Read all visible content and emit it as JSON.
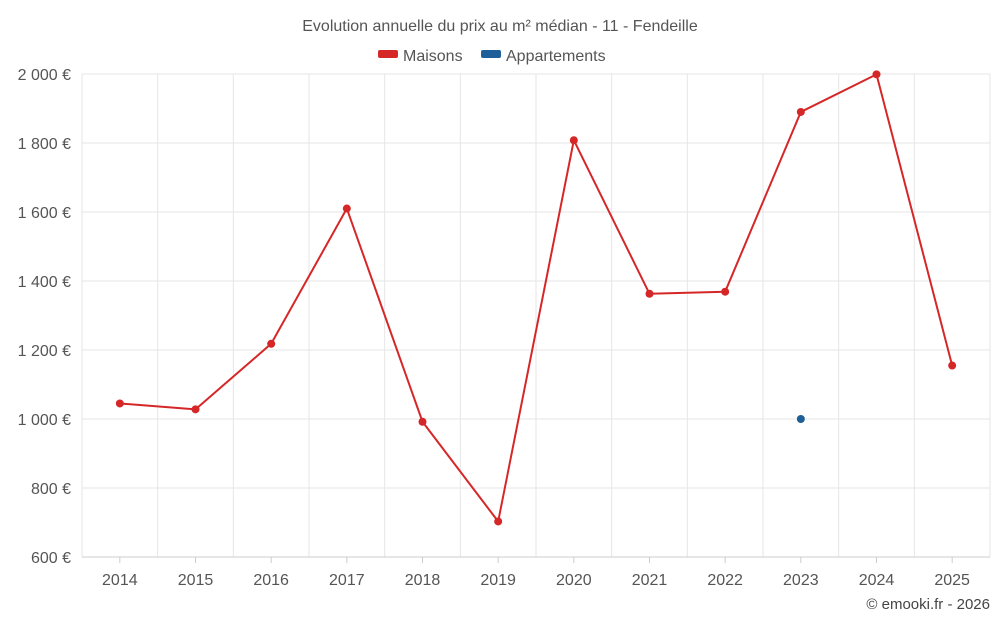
{
  "chart_data": {
    "type": "line",
    "title": "Evolution annuelle du prix au m² médian - 11 - Fendeille",
    "xlabel": "",
    "ylabel": "",
    "categories": [
      "2014",
      "2015",
      "2016",
      "2017",
      "2018",
      "2019",
      "2020",
      "2021",
      "2022",
      "2023",
      "2024",
      "2025"
    ],
    "ylim": [
      600,
      2000
    ],
    "y_ticks": [
      600,
      800,
      1000,
      1200,
      1400,
      1600,
      1800,
      2000
    ],
    "y_tick_labels": [
      "600 €",
      "800 €",
      "1 000 €",
      "1 200 €",
      "1 400 €",
      "1 600 €",
      "1 800 €",
      "2 000 €"
    ],
    "grid": true,
    "legend_position": "top-center",
    "series": [
      {
        "name": "Maisons",
        "color": "#d62728",
        "values": [
          1045,
          1028,
          1218,
          1610,
          992,
          703,
          1808,
          1363,
          1369,
          1890,
          1999,
          1155
        ]
      },
      {
        "name": "Appartements",
        "color": "#1f5f99",
        "values": [
          null,
          null,
          null,
          null,
          null,
          null,
          null,
          null,
          null,
          1000,
          null,
          null
        ]
      }
    ]
  },
  "credit": "© emooki.fr - 2026"
}
